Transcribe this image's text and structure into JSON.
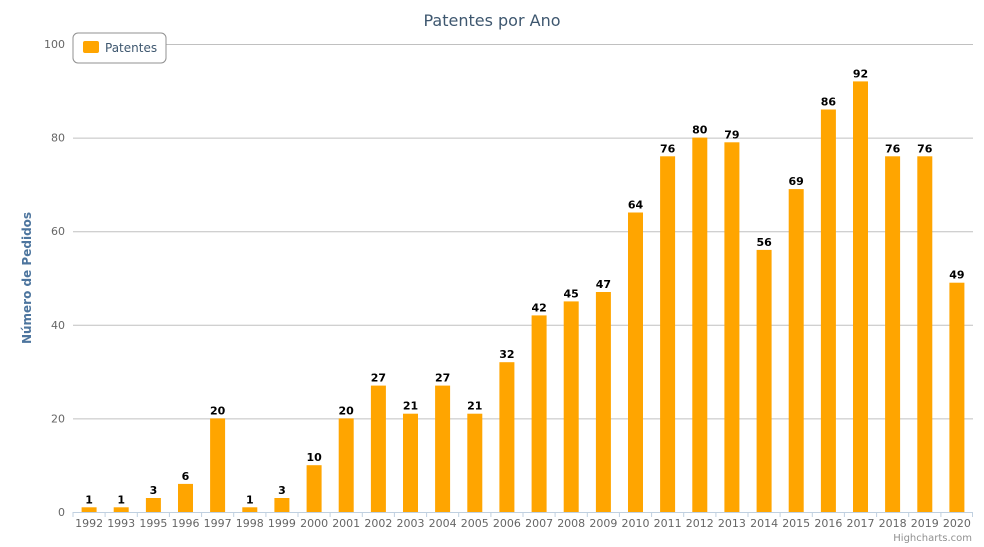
{
  "chart_data": {
    "type": "bar",
    "title": "Patentes por Ano",
    "ylabel": "Número de Pedidos",
    "xlabel": "",
    "ylim": [
      0,
      100
    ],
    "yticks": [
      0,
      20,
      40,
      60,
      80,
      100
    ],
    "grid": true,
    "legend_position": "top-left",
    "categories": [
      "1992",
      "1993",
      "1995",
      "1996",
      "1997",
      "1998",
      "1999",
      "2000",
      "2001",
      "2002",
      "2003",
      "2004",
      "2005",
      "2006",
      "2007",
      "2008",
      "2009",
      "2010",
      "2011",
      "2012",
      "2013",
      "2014",
      "2015",
      "2016",
      "2017",
      "2018",
      "2019",
      "2020"
    ],
    "series": [
      {
        "name": "Patentes",
        "color": "#FFA500",
        "values": [
          1,
          1,
          3,
          6,
          20,
          1,
          3,
          10,
          20,
          27,
          21,
          27,
          21,
          32,
          42,
          45,
          47,
          64,
          76,
          80,
          79,
          56,
          69,
          86,
          92,
          76,
          76,
          49
        ]
      }
    ],
    "data_labels": true
  },
  "credits": "Highcharts.com"
}
